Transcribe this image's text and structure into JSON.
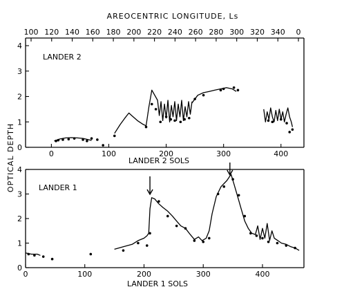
{
  "chart_data": [
    {
      "type": "line",
      "panel": "top",
      "top_axis_title": "AREOCENTRIC LONGITUDE, Ls",
      "top_axis_ticks": [
        "100",
        "120",
        "140",
        "160",
        "180",
        "200",
        "220",
        "240",
        "260",
        "280",
        "300",
        "320",
        "340",
        "0"
      ],
      "panel_label": "LANDER 2",
      "xlabel": "LANDER 2 SOLS",
      "ylabel": "OPTICAL DEPTH",
      "xlim": [
        -45,
        440
      ],
      "ylim": [
        0,
        4.3
      ],
      "xticks": [
        0,
        100,
        200,
        300,
        400
      ],
      "yticks": [
        0,
        1,
        2,
        3,
        4
      ],
      "segments": [
        [
          [
            5,
            0.25
          ],
          [
            15,
            0.33
          ],
          [
            25,
            0.37
          ],
          [
            35,
            0.38
          ],
          [
            45,
            0.37
          ],
          [
            55,
            0.35
          ],
          [
            65,
            0.3
          ],
          [
            70,
            0.27
          ]
        ],
        [
          [
            110,
            0.55
          ],
          [
            120,
            0.9
          ],
          [
            128,
            1.15
          ],
          [
            135,
            1.35
          ],
          [
            140,
            1.25
          ],
          [
            150,
            1.05
          ],
          [
            160,
            0.9
          ],
          [
            165,
            0.85
          ],
          [
            170,
            1.6
          ],
          [
            175,
            2.25
          ],
          [
            180,
            2.05
          ],
          [
            185,
            1.85
          ],
          [
            188,
            1.25
          ],
          [
            191,
            1.8
          ],
          [
            194,
            1.05
          ],
          [
            197,
            1.7
          ],
          [
            200,
            1.15
          ],
          [
            203,
            1.85
          ],
          [
            206,
            1.0
          ],
          [
            209,
            1.65
          ],
          [
            212,
            1.2
          ],
          [
            215,
            1.8
          ],
          [
            218,
            1.05
          ],
          [
            221,
            1.7
          ],
          [
            224,
            1.2
          ],
          [
            227,
            1.85
          ],
          [
            230,
            1.05
          ],
          [
            233,
            1.6
          ],
          [
            236,
            1.2
          ],
          [
            239,
            1.8
          ],
          [
            242,
            1.3
          ],
          [
            245,
            1.8
          ]
        ],
        [
          [
            245,
            1.75
          ],
          [
            255,
            2.05
          ],
          [
            265,
            2.15
          ],
          [
            275,
            2.2
          ],
          [
            285,
            2.25
          ],
          [
            295,
            2.3
          ],
          [
            305,
            2.35
          ],
          [
            315,
            2.3
          ],
          [
            322,
            2.2
          ]
        ],
        [
          [
            370,
            1.5
          ],
          [
            373,
            1.0
          ],
          [
            376,
            1.4
          ],
          [
            379,
            1.1
          ],
          [
            382,
            1.55
          ],
          [
            385,
            1.2
          ],
          [
            388,
            1.0
          ],
          [
            391,
            1.45
          ],
          [
            394,
            1.05
          ],
          [
            397,
            1.5
          ],
          [
            400,
            1.1
          ],
          [
            403,
            1.4
          ],
          [
            406,
            1.0
          ],
          [
            409,
            1.3
          ],
          [
            412,
            1.55
          ],
          [
            415,
            1.2
          ],
          [
            418,
            1.0
          ],
          [
            420,
            0.8
          ]
        ]
      ],
      "points": [
        [
          8,
          0.25
        ],
        [
          12,
          0.28
        ],
        [
          20,
          0.3
        ],
        [
          30,
          0.32
        ],
        [
          40,
          0.35
        ],
        [
          55,
          0.3
        ],
        [
          62,
          0.25
        ],
        [
          70,
          0.35
        ],
        [
          80,
          0.3
        ],
        [
          90,
          0.08
        ],
        [
          110,
          0.45
        ],
        [
          165,
          0.8
        ],
        [
          175,
          1.7
        ],
        [
          182,
          1.5
        ],
        [
          190,
          1.0
        ],
        [
          200,
          1.2
        ],
        [
          208,
          1.1
        ],
        [
          215,
          1.05
        ],
        [
          225,
          1.0
        ],
        [
          232,
          1.1
        ],
        [
          240,
          1.15
        ],
        [
          250,
          1.9
        ],
        [
          265,
          2.05
        ],
        [
          295,
          2.25
        ],
        [
          300,
          2.3
        ],
        [
          318,
          2.35
        ],
        [
          325,
          2.25
        ],
        [
          378,
          1.05
        ],
        [
          385,
          1.0
        ],
        [
          400,
          1.1
        ],
        [
          410,
          0.95
        ],
        [
          415,
          0.6
        ],
        [
          420,
          0.7
        ]
      ]
    },
    {
      "type": "line",
      "panel": "bottom",
      "panel_label": "LANDER 1",
      "xlabel": "LANDER 1 SOLS",
      "ylabel": "OPTICAL DEPTH",
      "xlim": [
        0,
        470
      ],
      "ylim": [
        0,
        4
      ],
      "xticks": [
        0,
        100,
        200,
        300,
        400
      ],
      "yticks": [
        0,
        1,
        2,
        3,
        4
      ],
      "arrows_at_sol": [
        210,
        345
      ],
      "segments": [
        [
          [
            0,
            0.6
          ],
          [
            10,
            0.55
          ],
          [
            20,
            0.55
          ],
          [
            25,
            0.5
          ]
        ],
        [
          [
            150,
            0.75
          ],
          [
            165,
            0.85
          ],
          [
            180,
            0.95
          ],
          [
            190,
            1.1
          ],
          [
            200,
            1.2
          ],
          [
            205,
            1.3
          ],
          [
            208,
            1.4
          ],
          [
            210,
            2.4
          ],
          [
            213,
            2.85
          ],
          [
            218,
            2.8
          ],
          [
            225,
            2.6
          ],
          [
            232,
            2.45
          ],
          [
            240,
            2.3
          ],
          [
            248,
            2.1
          ],
          [
            255,
            1.9
          ],
          [
            262,
            1.7
          ],
          [
            270,
            1.6
          ],
          [
            278,
            1.35
          ],
          [
            285,
            1.15
          ],
          [
            292,
            1.25
          ],
          [
            298,
            1.1
          ],
          [
            305,
            1.2
          ],
          [
            310,
            1.5
          ],
          [
            315,
            2.2
          ],
          [
            322,
            2.9
          ],
          [
            330,
            3.3
          ],
          [
            340,
            3.55
          ],
          [
            347,
            3.8
          ],
          [
            352,
            3.4
          ],
          [
            358,
            2.9
          ],
          [
            364,
            2.4
          ],
          [
            370,
            1.9
          ],
          [
            376,
            1.6
          ],
          [
            382,
            1.4
          ],
          [
            388,
            1.35
          ],
          [
            392,
            1.7
          ],
          [
            396,
            1.15
          ],
          [
            400,
            1.6
          ],
          [
            404,
            1.2
          ],
          [
            408,
            1.8
          ],
          [
            412,
            1.1
          ],
          [
            416,
            1.5
          ],
          [
            420,
            1.2
          ],
          [
            426,
            1.1
          ],
          [
            432,
            1.0
          ],
          [
            440,
            0.95
          ],
          [
            448,
            0.85
          ],
          [
            455,
            0.8
          ],
          [
            462,
            0.7
          ]
        ]
      ],
      "points": [
        [
          5,
          0.55
        ],
        [
          15,
          0.5
        ],
        [
          30,
          0.45
        ],
        [
          45,
          0.35
        ],
        [
          110,
          0.55
        ],
        [
          165,
          0.7
        ],
        [
          190,
          1.0
        ],
        [
          205,
          0.9
        ],
        [
          210,
          1.4
        ],
        [
          225,
          2.7
        ],
        [
          240,
          2.1
        ],
        [
          255,
          1.7
        ],
        [
          270,
          1.6
        ],
        [
          285,
          1.1
        ],
        [
          300,
          1.05
        ],
        [
          310,
          1.2
        ],
        [
          325,
          3.0
        ],
        [
          335,
          3.3
        ],
        [
          350,
          3.6
        ],
        [
          360,
          2.95
        ],
        [
          370,
          2.1
        ],
        [
          380,
          1.4
        ],
        [
          390,
          1.3
        ],
        [
          400,
          1.2
        ],
        [
          410,
          1.05
        ],
        [
          425,
          1.0
        ],
        [
          440,
          0.9
        ],
        [
          455,
          0.8
        ]
      ]
    }
  ]
}
